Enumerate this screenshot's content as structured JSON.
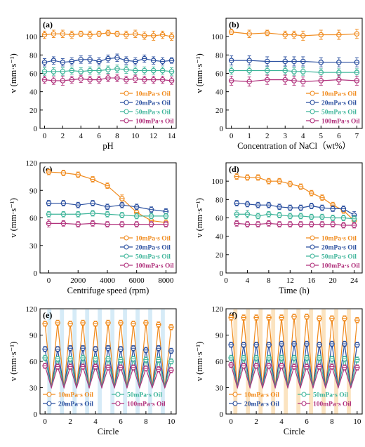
{
  "colors": {
    "10mPa": "#f08a1c",
    "20mPa": "#2a4f9f",
    "50mPa": "#3fb59a",
    "100mPa": "#b1337d",
    "stripe_e": "#d6ebf7",
    "stripe_f": "#fbe3c0"
  },
  "chart_data": [
    {
      "label": "(a)",
      "type": "line",
      "xlabel": "pH",
      "ylabel": "v (mm·s⁻¹)",
      "xlim": [
        -0.5,
        14.5
      ],
      "ylim": [
        0,
        120
      ],
      "xticks": [
        0,
        2,
        4,
        6,
        8,
        10,
        12,
        14
      ],
      "yticks": [
        0,
        20,
        40,
        60,
        80,
        100
      ],
      "legend": "bottom-right",
      "legend_layout": "column",
      "x": [
        0,
        1,
        2,
        3,
        4,
        5,
        6,
        7,
        8,
        9,
        10,
        11,
        12,
        13,
        14
      ],
      "series": [
        {
          "name": "10mPa·s Oil",
          "key": "10mPa",
          "values": [
            102,
            103,
            103,
            102,
            103,
            102,
            103,
            104,
            103,
            102,
            103,
            101,
            101,
            102,
            100
          ],
          "err": [
            4,
            4,
            4,
            4,
            3,
            4,
            3,
            3,
            3,
            4,
            4,
            4,
            5,
            4,
            4
          ]
        },
        {
          "name": "20mPa·s Oil",
          "key": "20mPa",
          "values": [
            72,
            74,
            72,
            73,
            75,
            75,
            73,
            76,
            77,
            74,
            73,
            76,
            74,
            73,
            74
          ],
          "err": [
            4,
            4,
            4,
            4,
            4,
            4,
            4,
            4,
            4,
            4,
            4,
            4,
            4,
            4,
            3
          ]
        },
        {
          "name": "50mPa·s Oil",
          "key": "50mPa",
          "values": [
            62,
            62,
            62,
            63,
            62,
            63,
            63,
            64,
            65,
            64,
            63,
            63,
            63,
            63,
            62
          ],
          "err": [
            4,
            4,
            4,
            4,
            4,
            4,
            4,
            4,
            4,
            4,
            4,
            4,
            4,
            4,
            4
          ]
        },
        {
          "name": "100mPa·s Oil",
          "key": "100mPa",
          "values": [
            53,
            52,
            52,
            53,
            54,
            53,
            53,
            55,
            55,
            53,
            54,
            53,
            53,
            53,
            52
          ],
          "err": [
            4,
            4,
            5,
            4,
            4,
            4,
            4,
            4,
            4,
            4,
            4,
            4,
            4,
            4,
            4
          ]
        }
      ]
    },
    {
      "label": "(b)",
      "type": "line",
      "xlabel": "Concentration of NaCl（wt%）",
      "ylabel": "v (mm·s⁻¹)",
      "xlim": [
        -0.3,
        7.3
      ],
      "ylim": [
        0,
        120
      ],
      "xticks": [
        0,
        1,
        2,
        3,
        4,
        5,
        6,
        7
      ],
      "yticks": [
        0,
        20,
        40,
        60,
        80,
        100
      ],
      "legend": "bottom-right",
      "legend_layout": "column",
      "x": [
        0,
        1,
        2,
        3,
        3.5,
        4,
        5,
        6,
        7
      ],
      "series": [
        {
          "name": "10mPa·s Oil",
          "key": "10mPa",
          "values": [
            105,
            103,
            104,
            102,
            102,
            101,
            102,
            102,
            103
          ],
          "err": [
            3,
            4,
            3,
            4,
            4,
            5,
            5,
            5,
            5
          ]
        },
        {
          "name": "20mPa·s Oil",
          "key": "20mPa",
          "values": [
            74,
            74,
            73,
            73,
            73,
            73,
            72,
            72,
            72
          ],
          "err": [
            5,
            5,
            5,
            5,
            5,
            5,
            5,
            5,
            5
          ]
        },
        {
          "name": "50mPa·s Oil",
          "key": "50mPa",
          "values": [
            63,
            63,
            63,
            63,
            62,
            62,
            61,
            61,
            61
          ],
          "err": [
            4,
            4,
            4,
            4,
            4,
            4,
            4,
            4,
            4
          ]
        },
        {
          "name": "100mPa·s Oil",
          "key": "100mPa",
          "values": [
            52,
            51,
            53,
            53,
            52,
            51,
            52,
            53,
            52
          ],
          "err": [
            5,
            5,
            5,
            5,
            5,
            5,
            5,
            5,
            5
          ]
        }
      ]
    },
    {
      "label": "(c)",
      "type": "line",
      "xlabel": "Centrifuge speed (rpm)",
      "ylabel": "v (mm·s⁻¹)",
      "xlim": [
        -600,
        8700
      ],
      "ylim": [
        0,
        120
      ],
      "xticks": [
        0,
        2000,
        4000,
        6000,
        8000
      ],
      "yticks": [
        0,
        30,
        60,
        90,
        120
      ],
      "legend": "bottom-right",
      "legend_layout": "column",
      "x": [
        0,
        1000,
        2000,
        3000,
        4000,
        5000,
        6000,
        7000,
        8000
      ],
      "series": [
        {
          "name": "10mPa·s Oil",
          "key": "10mPa",
          "values": [
            110,
            109,
            107,
            102,
            95,
            81,
            66,
            57,
            55
          ],
          "err": [
            3,
            3,
            3,
            3,
            3,
            4,
            4,
            4,
            4
          ]
        },
        {
          "name": "20mPa·s Oil",
          "key": "20mPa",
          "values": [
            76,
            76,
            74,
            76,
            72,
            74,
            72,
            69,
            67
          ],
          "err": [
            3,
            3,
            3,
            3,
            3,
            3,
            3,
            3,
            3
          ]
        },
        {
          "name": "50mPa·s Oil",
          "key": "50mPa",
          "values": [
            64,
            64,
            64,
            65,
            64,
            63,
            62,
            62,
            62
          ],
          "err": [
            3,
            3,
            3,
            3,
            3,
            3,
            3,
            3,
            3
          ]
        },
        {
          "name": "100mPa·s Oil",
          "key": "100mPa",
          "values": [
            54,
            54,
            53,
            54,
            53,
            53,
            53,
            53,
            53
          ],
          "err": [
            4,
            3,
            3,
            3,
            3,
            3,
            3,
            3,
            3
          ]
        }
      ]
    },
    {
      "label": "(d)",
      "type": "line",
      "xlabel": "Time (h)",
      "ylabel": "v (mm·s⁻¹)",
      "xlim": [
        0,
        25.5
      ],
      "ylim": [
        0,
        120
      ],
      "xticks": [
        0,
        4,
        8,
        12,
        16,
        20,
        24
      ],
      "yticks": [
        0,
        20,
        40,
        60,
        80,
        100
      ],
      "legend": "bottom-right",
      "legend_layout": "column",
      "x": [
        2,
        4,
        6,
        8,
        10,
        12,
        14,
        16,
        18,
        20,
        22,
        24
      ],
      "series": [
        {
          "name": "10mPa·s Oil",
          "key": "10mPa",
          "values": [
            105,
            104,
            104,
            100,
            100,
            97,
            94,
            87,
            82,
            74,
            68,
            57
          ],
          "err": [
            3,
            3,
            3,
            3,
            3,
            3,
            3,
            3,
            3,
            3,
            3,
            4
          ]
        },
        {
          "name": "20mPa·s Oil",
          "key": "20mPa",
          "values": [
            76,
            75,
            74,
            74,
            72,
            71,
            71,
            73,
            71,
            70,
            70,
            63
          ],
          "err": [
            3,
            3,
            3,
            3,
            3,
            3,
            3,
            3,
            3,
            3,
            3,
            4
          ]
        },
        {
          "name": "50mPa·s Oil",
          "key": "50mPa",
          "values": [
            64,
            64,
            62,
            64,
            63,
            62,
            62,
            61,
            61,
            60,
            60,
            59
          ],
          "err": [
            4,
            4,
            3,
            3,
            3,
            3,
            3,
            3,
            3,
            3,
            3,
            3
          ]
        },
        {
          "name": "100mPa·s Oil",
          "key": "100mPa",
          "values": [
            54,
            53,
            53,
            54,
            53,
            53,
            53,
            53,
            53,
            53,
            52,
            52
          ],
          "err": [
            3,
            3,
            3,
            3,
            3,
            3,
            3,
            3,
            3,
            3,
            3,
            3
          ]
        }
      ]
    },
    {
      "label": "(e)",
      "type": "line",
      "xlabel": "Circle",
      "ylabel": "v (mm·s⁻¹)",
      "xlim": [
        -0.4,
        10.4
      ],
      "ylim": [
        0,
        120
      ],
      "xticks": [
        0,
        2,
        4,
        6,
        8,
        10
      ],
      "yticks": [
        0,
        30,
        60,
        90,
        120
      ],
      "legend": "bottom",
      "legend_layout": "grid",
      "background_stripes": "stripe_e",
      "x": [
        0,
        0.5,
        1,
        1.5,
        2,
        2.5,
        3,
        3.5,
        4,
        4.5,
        5,
        5.5,
        6,
        6.5,
        7,
        7.5,
        8,
        8.5,
        9,
        9.5,
        10
      ],
      "series": [
        {
          "name": "10mPa·s Oil",
          "key": "10mPa",
          "values": [
            103,
            30,
            104,
            30,
            103,
            30,
            104,
            30,
            103,
            30,
            104,
            30,
            104,
            30,
            103,
            30,
            104,
            30,
            102,
            30,
            99
          ],
          "err": [
            3,
            0,
            3,
            0,
            3,
            0,
            3,
            0,
            3,
            0,
            3,
            0,
            3,
            0,
            3,
            0,
            3,
            0,
            3,
            0,
            3
          ]
        },
        {
          "name": "20mPa·s Oil",
          "key": "20mPa",
          "values": [
            74,
            30,
            74,
            30,
            75,
            30,
            75,
            30,
            74,
            30,
            75,
            30,
            74,
            30,
            75,
            30,
            73,
            30,
            75,
            30,
            72
          ],
          "err": [
            3,
            0,
            3,
            0,
            3,
            0,
            3,
            0,
            3,
            0,
            3,
            0,
            3,
            0,
            3,
            0,
            3,
            0,
            3,
            0,
            3
          ]
        },
        {
          "name": "50mPa·s Oil",
          "key": "50mPa",
          "values": [
            64,
            30,
            63,
            30,
            63,
            30,
            64,
            30,
            63,
            30,
            63,
            30,
            62,
            30,
            63,
            30,
            62,
            30,
            62,
            30,
            60
          ],
          "err": [
            3,
            0,
            3,
            0,
            3,
            0,
            3,
            0,
            3,
            0,
            3,
            0,
            3,
            0,
            3,
            0,
            3,
            0,
            3,
            0,
            3
          ]
        },
        {
          "name": "100mPa·s Oil",
          "key": "100mPa",
          "values": [
            55,
            30,
            54,
            30,
            54,
            30,
            54,
            30,
            54,
            30,
            53,
            30,
            53,
            30,
            53,
            30,
            52,
            30,
            51,
            30,
            50
          ],
          "err": [
            3,
            0,
            3,
            0,
            3,
            0,
            3,
            0,
            3,
            0,
            3,
            0,
            3,
            0,
            3,
            0,
            3,
            0,
            3,
            0,
            3
          ]
        }
      ]
    },
    {
      "label": "(f)",
      "type": "line",
      "xlabel": "Circle",
      "ylabel": "v (mm·s⁻¹)",
      "xlim": [
        -0.4,
        10.4
      ],
      "ylim": [
        0,
        120
      ],
      "xticks": [
        0,
        2,
        4,
        6,
        8,
        10
      ],
      "yticks": [
        0,
        30,
        60,
        90,
        120
      ],
      "legend": "bottom",
      "legend_layout": "grid",
      "background_stripes": "stripe_f",
      "x": [
        0,
        0.5,
        1,
        1.5,
        2,
        2.5,
        3,
        3.5,
        4,
        4.5,
        5,
        5.5,
        6,
        6.5,
        7,
        7.5,
        8,
        8.5,
        9,
        9.5,
        10
      ],
      "series": [
        {
          "name": "10mPa·s Oil",
          "key": "10mPa",
          "values": [
            110,
            30,
            110,
            30,
            110,
            30,
            110,
            30,
            110,
            30,
            111,
            30,
            111,
            30,
            109,
            30,
            109,
            30,
            109,
            30,
            107
          ],
          "err": [
            3,
            0,
            3,
            0,
            3,
            0,
            3,
            0,
            3,
            0,
            3,
            0,
            3,
            0,
            3,
            0,
            3,
            0,
            3,
            0,
            3
          ]
        },
        {
          "name": "20mPa·s Oil",
          "key": "20mPa",
          "values": [
            79,
            30,
            79,
            30,
            79,
            30,
            79,
            30,
            80,
            30,
            80,
            30,
            80,
            30,
            79,
            30,
            80,
            30,
            80,
            30,
            79
          ],
          "err": [
            3,
            0,
            3,
            0,
            3,
            0,
            3,
            0,
            3,
            0,
            3,
            0,
            3,
            0,
            3,
            0,
            3,
            0,
            3,
            0,
            3
          ]
        },
        {
          "name": "50mPa·s Oil",
          "key": "50mPa",
          "values": [
            64,
            30,
            64,
            30,
            64,
            30,
            64,
            30,
            64,
            30,
            64,
            30,
            64,
            30,
            64,
            30,
            63,
            30,
            63,
            30,
            62
          ],
          "err": [
            3,
            0,
            3,
            0,
            3,
            0,
            3,
            0,
            3,
            0,
            3,
            0,
            3,
            0,
            3,
            0,
            3,
            0,
            3,
            0,
            3
          ]
        },
        {
          "name": "100mPa·s Oil",
          "key": "100mPa",
          "values": [
            56,
            30,
            55,
            30,
            55,
            30,
            55,
            30,
            55,
            30,
            54,
            30,
            54,
            30,
            54,
            30,
            54,
            30,
            53,
            30,
            53
          ],
          "err": [
            3,
            0,
            3,
            0,
            3,
            0,
            3,
            0,
            3,
            0,
            3,
            0,
            3,
            0,
            3,
            0,
            3,
            0,
            3,
            0,
            3
          ]
        }
      ]
    }
  ]
}
